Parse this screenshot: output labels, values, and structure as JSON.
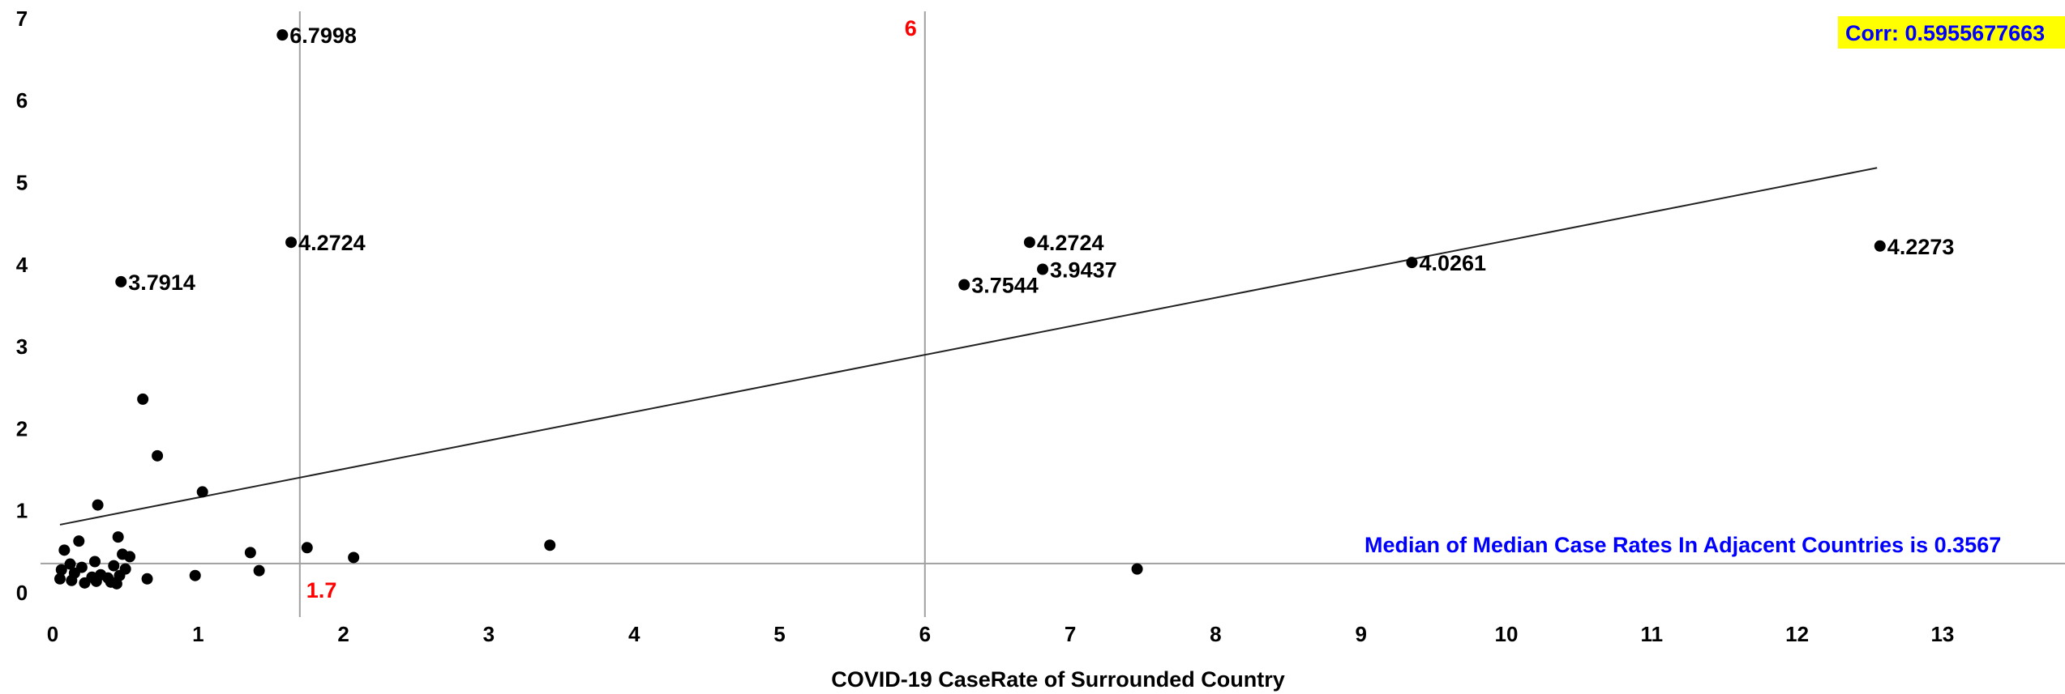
{
  "chart_data": {
    "type": "scatter",
    "xlabel": "COVID-19 CaseRate of Surrounded Country",
    "ylabel": "",
    "xlim": [
      0,
      14
    ],
    "ylim": [
      0,
      7
    ],
    "x_ticks": [
      0,
      1,
      2,
      3,
      4,
      5,
      6,
      7,
      8,
      9,
      10,
      11,
      12,
      13
    ],
    "y_ticks": [
      0,
      1,
      2,
      3,
      4,
      5,
      6,
      7
    ],
    "grid": false,
    "points": [
      {
        "x": 1.58,
        "y": 6.7998,
        "label": "6.7998"
      },
      {
        "x": 1.64,
        "y": 4.2724,
        "label": "4.2724"
      },
      {
        "x": 0.47,
        "y": 3.7914,
        "label": "3.7914"
      },
      {
        "x": 6.72,
        "y": 4.2724,
        "label": "4.2724"
      },
      {
        "x": 6.81,
        "y": 3.9437,
        "label": "3.9437"
      },
      {
        "x": 6.27,
        "y": 3.7544,
        "label": "3.7544"
      },
      {
        "x": 9.35,
        "y": 4.0261,
        "label": "4.0261"
      },
      {
        "x": 12.57,
        "y": 4.2273,
        "label": "4.2273"
      },
      {
        "x": 0.62,
        "y": 2.36
      },
      {
        "x": 0.72,
        "y": 1.67
      },
      {
        "x": 1.03,
        "y": 1.23
      },
      {
        "x": 0.31,
        "y": 1.07
      },
      {
        "x": 0.45,
        "y": 0.68
      },
      {
        "x": 0.18,
        "y": 0.63
      },
      {
        "x": 0.08,
        "y": 0.52
      },
      {
        "x": 3.42,
        "y": 0.58
      },
      {
        "x": 1.75,
        "y": 0.55
      },
      {
        "x": 1.36,
        "y": 0.49
      },
      {
        "x": 2.07,
        "y": 0.43
      },
      {
        "x": 0.48,
        "y": 0.47
      },
      {
        "x": 0.53,
        "y": 0.44
      },
      {
        "x": 0.29,
        "y": 0.38
      },
      {
        "x": 0.12,
        "y": 0.35
      },
      {
        "x": 0.2,
        "y": 0.31
      },
      {
        "x": 0.42,
        "y": 0.33
      },
      {
        "x": 0.5,
        "y": 0.29
      },
      {
        "x": 0.06,
        "y": 0.28
      },
      {
        "x": 1.42,
        "y": 0.27
      },
      {
        "x": 0.15,
        "y": 0.24
      },
      {
        "x": 0.33,
        "y": 0.22
      },
      {
        "x": 0.46,
        "y": 0.21
      },
      {
        "x": 0.98,
        "y": 0.21
      },
      {
        "x": 0.27,
        "y": 0.19
      },
      {
        "x": 0.38,
        "y": 0.18
      },
      {
        "x": 0.05,
        "y": 0.17
      },
      {
        "x": 0.65,
        "y": 0.17
      },
      {
        "x": 0.13,
        "y": 0.15
      },
      {
        "x": 0.3,
        "y": 0.14
      },
      {
        "x": 0.4,
        "y": 0.13
      },
      {
        "x": 0.22,
        "y": 0.12
      },
      {
        "x": 0.44,
        "y": 0.11
      },
      {
        "x": 7.46,
        "y": 0.29
      }
    ],
    "trendline": {
      "x1": 0.05,
      "y1": 0.83,
      "x2": 12.55,
      "y2": 5.18
    },
    "reference_lines": [
      {
        "axis": "x",
        "value": 1.7,
        "label": "1.7",
        "color": "#ff0000"
      },
      {
        "axis": "x",
        "value": 6,
        "label": "6",
        "color": "#ff0000"
      },
      {
        "axis": "y",
        "value": 0.3567,
        "label": "Median of Median Case Rates In Adjacent Countries is 0.3567",
        "color": "#0000ff"
      }
    ],
    "annotations": {
      "corr": {
        "text": "Corr: 0.5955677663",
        "text_color": "#0000ff",
        "bg_color": "#ffff00"
      }
    }
  }
}
